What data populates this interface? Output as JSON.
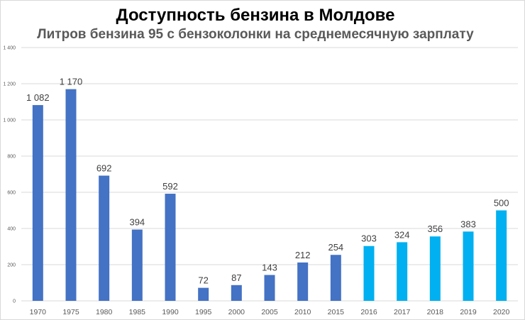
{
  "title": "Доступность бензина в Молдове",
  "subtitle": "Литров бензина 95 с бензоколонки на среднемесячную зарплату",
  "colors": {
    "historical": "#4472c4",
    "recent": "#00b0f0",
    "gridline": "#d9d9d9",
    "tick_text": "#595959",
    "label_text": "#404040"
  },
  "chart_data": {
    "type": "bar",
    "title": "Доступность бензина в Молдове",
    "subtitle": "Литров бензина 95 с бензоколонки на среднемесячную зарплату",
    "xlabel": "",
    "ylabel": "",
    "ylim": [
      0,
      1400
    ],
    "yticks": [
      "0",
      "200",
      "400",
      "600",
      "800",
      "1 000",
      "1 200",
      "1 400"
    ],
    "grid": true,
    "categories": [
      "1970",
      "1975",
      "1980",
      "1985",
      "1990",
      "1995",
      "2000",
      "2005",
      "2010",
      "2015",
      "2016",
      "2017",
      "2018",
      "2019",
      "2020"
    ],
    "values": [
      1082,
      1170,
      692,
      394,
      592,
      72,
      87,
      143,
      212,
      254,
      303,
      324,
      356,
      383,
      500
    ],
    "data_labels": [
      "1 082",
      "1 170",
      "692",
      "394",
      "592",
      "72",
      "87",
      "143",
      "212",
      "254",
      "303",
      "324",
      "356",
      "383",
      "500"
    ],
    "bar_colors": [
      "#4472c4",
      "#4472c4",
      "#4472c4",
      "#4472c4",
      "#4472c4",
      "#4472c4",
      "#4472c4",
      "#4472c4",
      "#4472c4",
      "#4472c4",
      "#00b0f0",
      "#00b0f0",
      "#00b0f0",
      "#00b0f0",
      "#00b0f0"
    ]
  }
}
